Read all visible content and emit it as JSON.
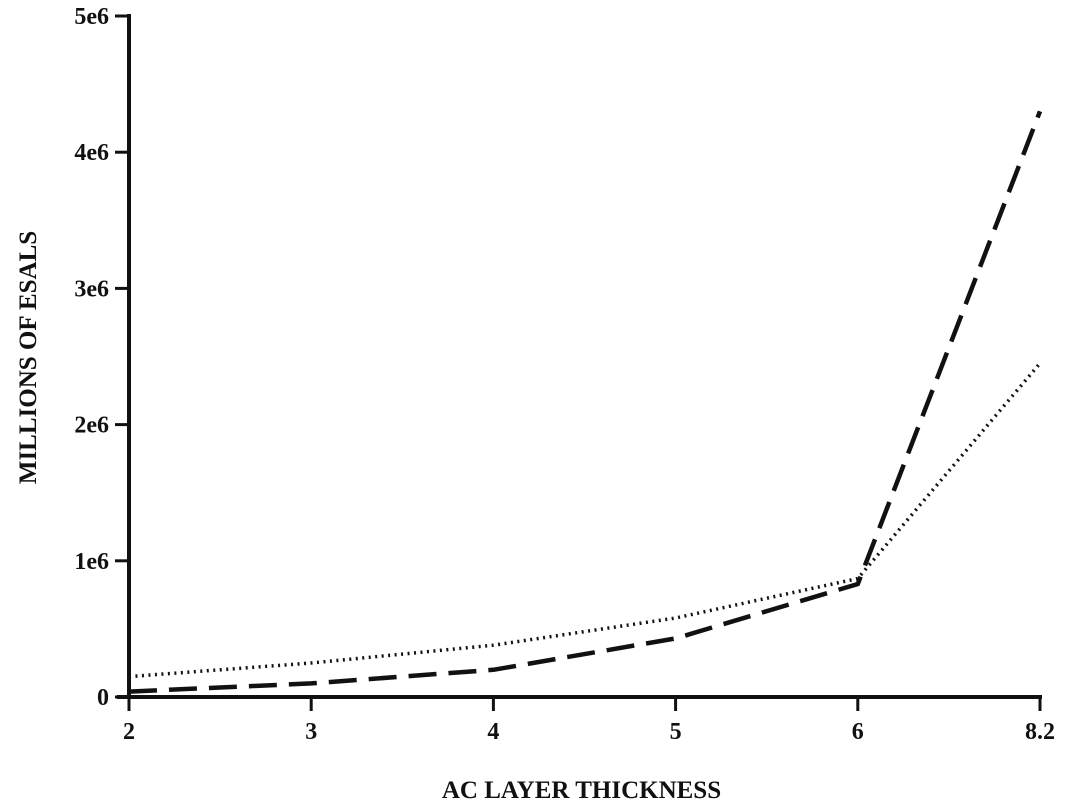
{
  "chart_data": {
    "type": "line",
    "title": "",
    "xlabel": "AC LAYER THICKNESS",
    "ylabel": "MILLIONS OF ESALS",
    "categories": [
      "2",
      "3",
      "4",
      "5",
      "6",
      "8.2"
    ],
    "yticks": [
      {
        "value": 0,
        "label": "0"
      },
      {
        "value": 1000000,
        "label": "1e6"
      },
      {
        "value": 2000000,
        "label": "2e6"
      },
      {
        "value": 3000000,
        "label": "3e6"
      },
      {
        "value": 4000000,
        "label": "4e6"
      },
      {
        "value": 5000000,
        "label": "5e6"
      }
    ],
    "ylim": [
      0,
      5000000
    ],
    "grid": false,
    "legend": "none",
    "series": [
      {
        "style": "dashed",
        "color": "#111111",
        "values": [
          40000,
          100000,
          200000,
          430000,
          830000,
          4300000
        ]
      },
      {
        "style": "dotted",
        "color": "#111111",
        "values": [
          150000,
          250000,
          380000,
          580000,
          870000,
          2450000
        ]
      }
    ]
  }
}
